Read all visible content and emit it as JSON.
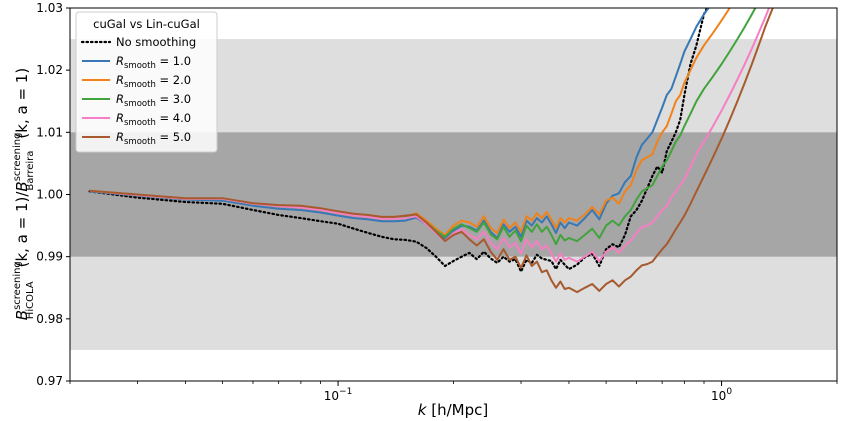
{
  "chart_data": {
    "type": "line",
    "title": "",
    "xlabel": "k [h/Mpc]",
    "xlabel_parts": {
      "var": "k",
      "unit": "[h/Mpc]"
    },
    "ylabel": "B^screening_HiCOLA(k, a=1)/B^screening_Barreira(k, a=1)",
    "ylabel_parts": {
      "num_sym": "B",
      "num_sup": "screening",
      "num_sub": "HiCOLA",
      "den_sym": "B",
      "den_sup": "screening",
      "den_sub": "Barreira",
      "arg": "(k, a = 1)"
    },
    "x_scale": "log",
    "xlim": [
      0.02,
      2.0
    ],
    "ylim": [
      0.97,
      1.03
    ],
    "x_ticks": [
      {
        "value": 0.1,
        "base": "10",
        "exp": "−1"
      },
      {
        "value": 1.0,
        "base": "10",
        "exp": "0"
      }
    ],
    "y_ticks": [
      {
        "value": 0.97,
        "label": "0.97"
      },
      {
        "value": 0.98,
        "label": "0.98"
      },
      {
        "value": 0.99,
        "label": "0.99"
      },
      {
        "value": 1.0,
        "label": "1.00"
      },
      {
        "value": 1.01,
        "label": "1.01"
      },
      {
        "value": 1.02,
        "label": "1.02"
      },
      {
        "value": 1.03,
        "label": "1.03"
      }
    ],
    "bands": [
      {
        "ymin": 0.975,
        "ymax": 1.025,
        "color": "#dedede"
      },
      {
        "ymin": 0.99,
        "ymax": 1.01,
        "color": "#a6a6a6"
      }
    ],
    "grid": false,
    "legend": {
      "placement": "top-left",
      "title": "cuGal vs Lin-cuGal",
      "entries": [
        {
          "symbol": "",
          "subscript": "",
          "value_text": "No smoothing",
          "series": 0
        },
        {
          "symbol": "R",
          "subscript": "smooth",
          "value_text": " = 1.0",
          "series": 1
        },
        {
          "symbol": "R",
          "subscript": "smooth",
          "value_text": " = 2.0",
          "series": 2
        },
        {
          "symbol": "R",
          "subscript": "smooth",
          "value_text": " = 3.0",
          "series": 3
        },
        {
          "symbol": "R",
          "subscript": "smooth",
          "value_text": " = 4.0",
          "series": 4
        },
        {
          "symbol": "R",
          "subscript": "smooth",
          "value_text": " = 5.0",
          "series": 5
        }
      ]
    },
    "series": [
      {
        "name": "No smoothing",
        "color": "#000000",
        "dash": "dotted",
        "x": [
          0.0225,
          0.03,
          0.04,
          0.05,
          0.06,
          0.07,
          0.08,
          0.09,
          0.1,
          0.11,
          0.12,
          0.13,
          0.14,
          0.15,
          0.16,
          0.17,
          0.18,
          0.19,
          0.2,
          0.21,
          0.22,
          0.23,
          0.24,
          0.25,
          0.26,
          0.27,
          0.28,
          0.29,
          0.3,
          0.31,
          0.32,
          0.33,
          0.34,
          0.35,
          0.36,
          0.37,
          0.38,
          0.39,
          0.4,
          0.42,
          0.44,
          0.46,
          0.48,
          0.5,
          0.52,
          0.54,
          0.56,
          0.58,
          0.6,
          0.62,
          0.64,
          0.66,
          0.68,
          0.7,
          0.72,
          0.74,
          0.76,
          0.78,
          0.8,
          0.83,
          0.86,
          0.9,
          0.95
        ],
        "y": [
          1.0005,
          0.9995,
          0.9988,
          0.9985,
          0.9975,
          0.9967,
          0.9962,
          0.9957,
          0.9953,
          0.9945,
          0.9938,
          0.9932,
          0.9928,
          0.9927,
          0.9924,
          0.9914,
          0.99,
          0.9885,
          0.9893,
          0.99,
          0.9906,
          0.9896,
          0.9908,
          0.9897,
          0.989,
          0.99,
          0.9892,
          0.9896,
          0.9876,
          0.9895,
          0.989,
          0.9903,
          0.9897,
          0.9895,
          0.9893,
          0.988,
          0.9895,
          0.9887,
          0.988,
          0.9887,
          0.9899,
          0.9905,
          0.9885,
          0.9912,
          0.992,
          0.9915,
          0.9935,
          0.9965,
          0.9975,
          0.999,
          1.001,
          1.003,
          1.0045,
          1.0035,
          1.007,
          1.0085,
          1.01,
          1.012,
          1.016,
          1.021,
          1.024,
          1.029,
          1.032
        ]
      },
      {
        "name": "R_smooth = 1.0",
        "color": "#3878b4",
        "dash": "solid",
        "x": [
          0.0225,
          0.03,
          0.04,
          0.05,
          0.06,
          0.07,
          0.08,
          0.09,
          0.1,
          0.11,
          0.12,
          0.13,
          0.14,
          0.15,
          0.16,
          0.17,
          0.18,
          0.19,
          0.2,
          0.21,
          0.22,
          0.23,
          0.24,
          0.25,
          0.26,
          0.27,
          0.28,
          0.29,
          0.3,
          0.31,
          0.32,
          0.33,
          0.34,
          0.35,
          0.36,
          0.37,
          0.38,
          0.39,
          0.4,
          0.42,
          0.44,
          0.46,
          0.48,
          0.5,
          0.52,
          0.54,
          0.56,
          0.58,
          0.6,
          0.62,
          0.64,
          0.66,
          0.68,
          0.7,
          0.72,
          0.74,
          0.76,
          0.78,
          0.8,
          0.83,
          0.86,
          0.9,
          0.95
        ],
        "y": [
          1.0005,
          0.9998,
          0.9992,
          0.999,
          0.9982,
          0.9977,
          0.9975,
          0.9971,
          0.9966,
          0.9962,
          0.996,
          0.9957,
          0.9957,
          0.9958,
          0.9963,
          0.9952,
          0.994,
          0.993,
          0.9942,
          0.995,
          0.9948,
          0.9942,
          0.9958,
          0.994,
          0.993,
          0.9952,
          0.994,
          0.9948,
          0.9932,
          0.9958,
          0.995,
          0.9962,
          0.9955,
          0.9965,
          0.9952,
          0.9938,
          0.9955,
          0.9946,
          0.9955,
          0.995,
          0.9962,
          0.9975,
          0.996,
          0.9985,
          0.9998,
          1.0002,
          1.002,
          1.003,
          1.006,
          1.008,
          1.009,
          1.01,
          1.012,
          1.014,
          1.016,
          1.017,
          1.019,
          1.021,
          1.023,
          1.025,
          1.027,
          1.029,
          1.031
        ]
      },
      {
        "name": "R_smooth = 2.0",
        "color": "#f0821a",
        "dash": "solid",
        "x": [
          0.0225,
          0.03,
          0.04,
          0.05,
          0.06,
          0.07,
          0.08,
          0.09,
          0.1,
          0.11,
          0.12,
          0.13,
          0.14,
          0.15,
          0.16,
          0.17,
          0.18,
          0.19,
          0.2,
          0.21,
          0.22,
          0.23,
          0.24,
          0.25,
          0.26,
          0.27,
          0.28,
          0.29,
          0.3,
          0.31,
          0.32,
          0.33,
          0.34,
          0.35,
          0.36,
          0.37,
          0.38,
          0.39,
          0.4,
          0.42,
          0.44,
          0.46,
          0.48,
          0.5,
          0.52,
          0.54,
          0.56,
          0.58,
          0.6,
          0.62,
          0.64,
          0.66,
          0.68,
          0.7,
          0.72,
          0.74,
          0.76,
          0.78,
          0.8,
          0.83,
          0.86,
          0.9,
          0.95,
          1.0,
          1.05,
          1.1
        ],
        "y": [
          1.0006,
          0.9999,
          0.9993,
          0.9993,
          0.9985,
          0.9981,
          0.9979,
          0.9975,
          0.997,
          0.9966,
          0.9965,
          0.9962,
          0.9962,
          0.9964,
          0.997,
          0.9958,
          0.9945,
          0.9935,
          0.995,
          0.9958,
          0.9955,
          0.9948,
          0.9965,
          0.9946,
          0.9938,
          0.996,
          0.9946,
          0.9955,
          0.994,
          0.9965,
          0.9958,
          0.997,
          0.9962,
          0.9972,
          0.996,
          0.9946,
          0.9962,
          0.9955,
          0.9962,
          0.9958,
          0.9968,
          0.998,
          0.9968,
          0.999,
          0.9995,
          0.9985,
          1.0005,
          1.0015,
          1.004,
          1.0055,
          1.006,
          1.0065,
          1.0085,
          1.01,
          1.011,
          1.013,
          1.015,
          1.016,
          1.018,
          1.02,
          1.022,
          1.024,
          1.026,
          1.028,
          1.03,
          1.032
        ]
      },
      {
        "name": "R_smooth = 3.0",
        "color": "#41a33c",
        "dash": "solid",
        "x": [
          0.0225,
          0.03,
          0.04,
          0.05,
          0.06,
          0.07,
          0.08,
          0.09,
          0.1,
          0.11,
          0.12,
          0.13,
          0.14,
          0.15,
          0.16,
          0.17,
          0.18,
          0.19,
          0.2,
          0.21,
          0.22,
          0.23,
          0.24,
          0.25,
          0.26,
          0.27,
          0.28,
          0.29,
          0.3,
          0.31,
          0.32,
          0.33,
          0.34,
          0.35,
          0.36,
          0.37,
          0.38,
          0.39,
          0.4,
          0.42,
          0.44,
          0.46,
          0.48,
          0.5,
          0.52,
          0.54,
          0.56,
          0.58,
          0.6,
          0.62,
          0.64,
          0.66,
          0.68,
          0.7,
          0.72,
          0.74,
          0.76,
          0.78,
          0.8,
          0.83,
          0.86,
          0.9,
          0.95,
          1.0,
          1.05,
          1.1,
          1.15,
          1.2,
          1.25
        ],
        "y": [
          1.0006,
          0.9999,
          0.9993,
          0.9993,
          0.9985,
          0.9981,
          0.9979,
          0.9975,
          0.997,
          0.9966,
          0.9964,
          0.9962,
          0.9962,
          0.9964,
          0.9968,
          0.9955,
          0.9942,
          0.9932,
          0.9945,
          0.9952,
          0.9946,
          0.994,
          0.9955,
          0.9936,
          0.9928,
          0.9948,
          0.9932,
          0.9942,
          0.9925,
          0.995,
          0.994,
          0.9952,
          0.994,
          0.9948,
          0.9935,
          0.992,
          0.9935,
          0.9926,
          0.993,
          0.9925,
          0.9935,
          0.9945,
          0.993,
          0.995,
          0.9958,
          0.995,
          0.9965,
          0.9975,
          0.9992,
          1.0005,
          1.001,
          1.0015,
          1.003,
          1.0045,
          1.0055,
          1.007,
          1.0085,
          1.0095,
          1.011,
          1.013,
          1.015,
          1.017,
          1.019,
          1.021,
          1.023,
          1.025,
          1.027,
          1.029,
          1.031
        ]
      },
      {
        "name": "R_smooth = 4.0",
        "color": "#f57fc2",
        "dash": "solid",
        "x": [
          0.0225,
          0.03,
          0.04,
          0.05,
          0.06,
          0.07,
          0.08,
          0.09,
          0.1,
          0.11,
          0.12,
          0.13,
          0.14,
          0.15,
          0.16,
          0.17,
          0.18,
          0.19,
          0.2,
          0.21,
          0.22,
          0.23,
          0.24,
          0.25,
          0.26,
          0.27,
          0.28,
          0.29,
          0.3,
          0.31,
          0.32,
          0.33,
          0.34,
          0.35,
          0.36,
          0.37,
          0.38,
          0.39,
          0.4,
          0.42,
          0.44,
          0.46,
          0.48,
          0.5,
          0.52,
          0.54,
          0.56,
          0.58,
          0.6,
          0.62,
          0.64,
          0.66,
          0.68,
          0.7,
          0.72,
          0.74,
          0.76,
          0.78,
          0.8,
          0.83,
          0.86,
          0.9,
          0.95,
          1.0,
          1.05,
          1.1,
          1.15,
          1.2,
          1.25,
          1.3,
          1.35
        ],
        "y": [
          1.0006,
          0.9999,
          0.9993,
          0.9993,
          0.9985,
          0.9981,
          0.9979,
          0.9975,
          0.997,
          0.9966,
          0.9964,
          0.9961,
          0.9961,
          0.9962,
          0.9965,
          0.9952,
          0.9938,
          0.9925,
          0.9938,
          0.9944,
          0.9935,
          0.9928,
          0.994,
          0.9922,
          0.9912,
          0.993,
          0.9915,
          0.9922,
          0.9905,
          0.9928,
          0.9915,
          0.9925,
          0.9912,
          0.9918,
          0.9905,
          0.9892,
          0.9905,
          0.9895,
          0.9898,
          0.9892,
          0.99,
          0.9908,
          0.9893,
          0.9908,
          0.9915,
          0.9906,
          0.9918,
          0.9926,
          0.9938,
          0.9948,
          0.995,
          0.9955,
          0.9965,
          0.9975,
          0.9982,
          0.9995,
          1.0005,
          1.0015,
          1.0025,
          1.0045,
          1.0065,
          1.0085,
          1.011,
          1.0135,
          1.016,
          1.0185,
          1.021,
          1.0235,
          1.026,
          1.0285,
          1.031
        ]
      },
      {
        "name": "R_smooth = 5.0",
        "color": "#a65a2e",
        "dash": "solid",
        "x": [
          0.0225,
          0.03,
          0.04,
          0.05,
          0.06,
          0.07,
          0.08,
          0.09,
          0.1,
          0.11,
          0.12,
          0.13,
          0.14,
          0.15,
          0.16,
          0.17,
          0.18,
          0.19,
          0.2,
          0.21,
          0.22,
          0.23,
          0.24,
          0.25,
          0.26,
          0.27,
          0.28,
          0.29,
          0.3,
          0.31,
          0.32,
          0.33,
          0.34,
          0.35,
          0.36,
          0.37,
          0.38,
          0.39,
          0.4,
          0.42,
          0.44,
          0.46,
          0.48,
          0.5,
          0.52,
          0.54,
          0.56,
          0.58,
          0.6,
          0.62,
          0.64,
          0.66,
          0.68,
          0.7,
          0.72,
          0.74,
          0.76,
          0.78,
          0.8,
          0.83,
          0.86,
          0.9,
          0.95,
          1.0,
          1.05,
          1.1,
          1.15,
          1.2,
          1.25,
          1.3,
          1.35,
          1.4
        ],
        "y": [
          1.0006,
          1.0,
          0.9994,
          0.9994,
          0.9986,
          0.9983,
          0.9982,
          0.9978,
          0.9973,
          0.9969,
          0.9967,
          0.9964,
          0.9964,
          0.9966,
          0.9968,
          0.9955,
          0.994,
          0.9925,
          0.9935,
          0.994,
          0.9928,
          0.9918,
          0.9928,
          0.9908,
          0.9895,
          0.9912,
          0.9895,
          0.99,
          0.9882,
          0.9902,
          0.9885,
          0.9892,
          0.9875,
          0.9878,
          0.9862,
          0.985,
          0.986,
          0.9848,
          0.985,
          0.9843,
          0.985,
          0.9856,
          0.9845,
          0.9856,
          0.9862,
          0.9852,
          0.9862,
          0.9868,
          0.9878,
          0.9886,
          0.9888,
          0.9892,
          0.9902,
          0.9912,
          0.992,
          0.9932,
          0.9944,
          0.9955,
          0.9966,
          0.9985,
          1.0005,
          1.003,
          1.006,
          1.009,
          1.012,
          1.015,
          1.018,
          1.021,
          1.024,
          1.027,
          1.0295,
          1.032
        ]
      }
    ]
  }
}
